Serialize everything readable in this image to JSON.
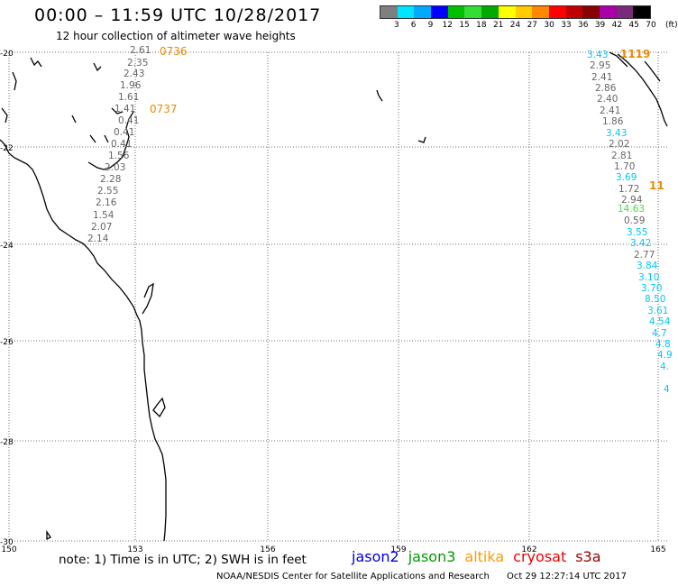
{
  "header": {
    "title": "00:00 – 11:59 UTC 10/28/2017",
    "subtitle": "12 hour collection of altimeter wave heights"
  },
  "legend": {
    "colors": [
      "#7f7f7f",
      "#00e5ff",
      "#00a8ff",
      "#0000ff",
      "#00c000",
      "#33dd33",
      "#00aa00",
      "#ffff00",
      "#ffcc00",
      "#ff8800",
      "#ff0000",
      "#c00000",
      "#880000",
      "#aa00aa",
      "#7a2a7a",
      "#000000"
    ],
    "labels": [
      "3",
      "6",
      "9",
      "12",
      "15",
      "18",
      "21",
      "24",
      "27",
      "30",
      "33",
      "36",
      "39",
      "42",
      "45",
      "70",
      "(ft)"
    ]
  },
  "axes": {
    "y_ticks": [
      "-20",
      "-22",
      "-24",
      "-26",
      "-28",
      "-30"
    ],
    "x_ticks": [
      "150",
      "153",
      "156",
      "159",
      "162",
      "165"
    ]
  },
  "colors": {
    "gray": "#666666",
    "cyan": "#00c8f0",
    "green": "#44dd44",
    "darkred": "#880000",
    "orange": "#e88b00"
  },
  "tracks": {
    "west": [
      {
        "label": "2.61",
        "color": "gray"
      },
      {
        "label": "2.35",
        "color": "gray"
      },
      {
        "label": "2.43",
        "color": "gray"
      },
      {
        "label": "1.96",
        "color": "gray"
      },
      {
        "label": "1.61",
        "color": "gray"
      },
      {
        "label": "1.41",
        "color": "gray"
      },
      {
        "label": "0.41",
        "color": "gray"
      },
      {
        "label": "0.41",
        "color": "gray"
      },
      {
        "label": "0.41",
        "color": "gray"
      },
      {
        "label": "1.56",
        "color": "gray"
      },
      {
        "label": "2.03",
        "color": "gray"
      },
      {
        "label": "2.28",
        "color": "gray"
      },
      {
        "label": "2.55",
        "color": "gray"
      },
      {
        "label": "2.16",
        "color": "gray"
      },
      {
        "label": "1.54",
        "color": "gray"
      },
      {
        "label": "2.07",
        "color": "gray"
      },
      {
        "label": "2.14",
        "color": "gray"
      }
    ],
    "west_times": [
      "0736",
      "0737"
    ],
    "east": [
      {
        "label": "3.43",
        "color": "cyan"
      },
      {
        "label": "2.95",
        "color": "gray"
      },
      {
        "label": "2.41",
        "color": "gray"
      },
      {
        "label": "2.86",
        "color": "gray"
      },
      {
        "label": "2.40",
        "color": "gray"
      },
      {
        "label": "2.41",
        "color": "gray"
      },
      {
        "label": "1.86",
        "color": "gray"
      },
      {
        "label": "3.43",
        "color": "cyan"
      },
      {
        "label": "2.02",
        "color": "gray"
      },
      {
        "label": "2.81",
        "color": "gray"
      },
      {
        "label": "1.70",
        "color": "gray"
      },
      {
        "label": "3.69",
        "color": "cyan"
      },
      {
        "label": "1.72",
        "color": "gray"
      },
      {
        "label": "2.94",
        "color": "gray"
      },
      {
        "label": "14.63",
        "color": "green"
      },
      {
        "label": "0.59",
        "color": "gray"
      },
      {
        "label": "3.55",
        "color": "cyan"
      },
      {
        "label": "3.42",
        "color": "cyan"
      },
      {
        "label": "2.77",
        "color": "gray"
      },
      {
        "label": "3.84",
        "color": "cyan"
      },
      {
        "label": "3.10",
        "color": "cyan"
      },
      {
        "label": "3.70",
        "color": "cyan"
      },
      {
        "label": "8.50",
        "color": "cyan"
      },
      {
        "label": "3.61",
        "color": "cyan"
      },
      {
        "label": "4.54",
        "color": "cyan"
      },
      {
        "label": "4.7",
        "color": "cyan"
      },
      {
        "label": "4.8",
        "color": "cyan"
      },
      {
        "label": "4.9",
        "color": "cyan"
      },
      {
        "label": "4.",
        "color": "cyan"
      },
      {
        "label": "4",
        "color": "cyan"
      }
    ],
    "east_times": [
      "1119",
      "11"
    ]
  },
  "footer": {
    "note": "note: 1) Time is in UTC; 2) SWH is in feet",
    "satellites": [
      {
        "name": "jason2",
        "color": "#0000dd"
      },
      {
        "name": "jason3",
        "color": "#009900"
      },
      {
        "name": "altika",
        "color": "#ff9900"
      },
      {
        "name": "cryosat",
        "color": "#ee0000"
      },
      {
        "name": "s3a",
        "color": "#990000"
      }
    ],
    "credit": "NOAA/NESDIS Center for Satellite Applications and Research",
    "timestamp": "Oct 29 12:27:14 UTC 2017"
  }
}
